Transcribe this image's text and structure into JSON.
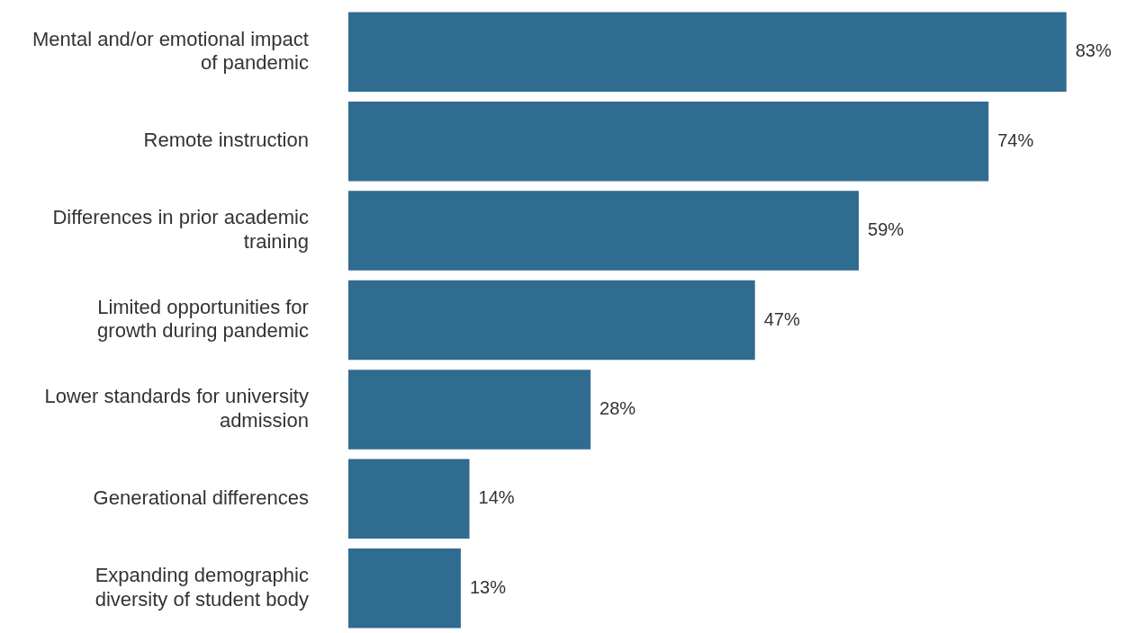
{
  "chart_data": {
    "type": "bar",
    "orientation": "horizontal",
    "categories": [
      "Mental and/or emotional impact of pandemic",
      "Remote instruction",
      "Differences in prior academic training",
      "Limited opportunities for growth during pandemic",
      "Lower standards for university admission",
      "Generational differences",
      "Expanding demographic diversity of student body"
    ],
    "values": [
      83,
      74,
      59,
      47,
      28,
      14,
      13
    ],
    "value_labels": [
      "83%",
      "74%",
      "59%",
      "47%",
      "28%",
      "14%",
      "13%"
    ],
    "color": "#306b90",
    "tick_labels": "y"
  }
}
